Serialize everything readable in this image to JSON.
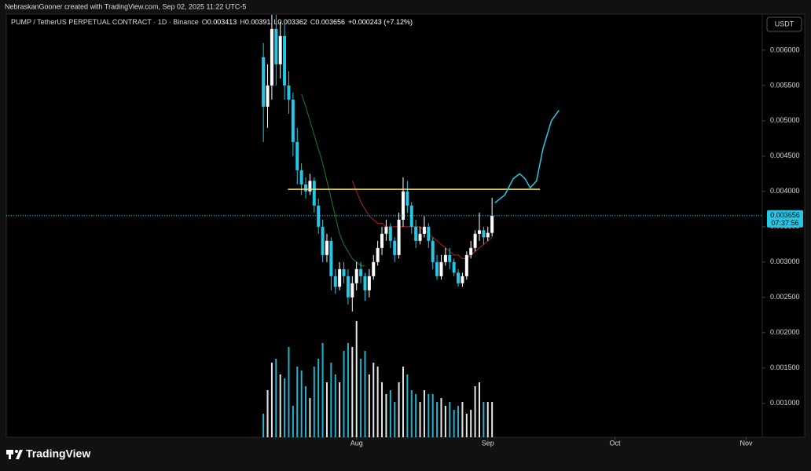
{
  "header": {
    "credit": "NebraskanGooner created with TradingView.com, Sep 02, 2025 11:22 UTC-5",
    "brand": "TradingView"
  },
  "chart_data": {
    "type": "candlestick",
    "symbol": "PUMP / TetherUS PERPETUAL CONTRACT · 1D · Binance",
    "ohlc_letters": [
      "O",
      "H",
      "L",
      "C"
    ],
    "change": "+0.000243 (+7.12%)",
    "currency": "USDT",
    "countdown": "07:37:56",
    "bull_color": "#ffffff",
    "bear_color": "#26c6e6",
    "x": [
      0,
      1,
      2,
      3,
      4,
      5,
      6,
      7,
      8,
      9,
      10,
      11,
      12,
      13,
      14,
      15,
      16,
      17,
      18,
      19,
      20,
      21,
      22,
      23,
      24,
      25,
      26,
      27,
      28,
      29,
      30,
      31,
      32,
      33,
      34,
      35,
      36,
      37,
      38,
      39,
      40,
      41,
      42,
      43,
      44,
      45,
      46,
      47,
      48,
      49,
      50,
      51,
      52,
      53,
      54
    ],
    "candles": {
      "open": [
        0.0059,
        0.0052,
        0.0055,
        0.0063,
        0.0058,
        0.0062,
        0.0055,
        0.0053,
        0.0047,
        0.0043,
        0.0041,
        0.004,
        0.00415,
        0.0038,
        0.0035,
        0.0031,
        0.0033,
        0.0028,
        0.00265,
        0.0029,
        0.0028,
        0.0025,
        0.0027,
        0.0029,
        0.0028,
        0.0026,
        0.0028,
        0.003,
        0.0032,
        0.0034,
        0.0035,
        0.0033,
        0.0031,
        0.0036,
        0.004,
        0.0038,
        0.0035,
        0.0033,
        0.0034,
        0.0035,
        0.0033,
        0.003,
        0.0028,
        0.003,
        0.0031,
        0.003,
        0.00285,
        0.0027,
        0.0028,
        0.0031,
        0.0032,
        0.0034,
        0.00345,
        0.00335,
        0.003413
      ],
      "high": [
        0.0061,
        0.0058,
        0.0065,
        0.0065,
        0.0064,
        0.0064,
        0.0057,
        0.0054,
        0.0049,
        0.0044,
        0.0042,
        0.00425,
        0.0042,
        0.0039,
        0.0036,
        0.0034,
        0.00335,
        0.0029,
        0.003,
        0.003,
        0.0029,
        0.0028,
        0.003,
        0.003,
        0.00285,
        0.0029,
        0.0031,
        0.0033,
        0.0035,
        0.0036,
        0.00355,
        0.00335,
        0.0037,
        0.0042,
        0.00415,
        0.00385,
        0.0036,
        0.0035,
        0.00365,
        0.00355,
        0.00335,
        0.0031,
        0.0031,
        0.0032,
        0.0032,
        0.00305,
        0.0029,
        0.00285,
        0.00315,
        0.0033,
        0.00345,
        0.0037,
        0.0035,
        0.0035,
        0.00391
      ],
      "low": [
        0.0047,
        0.0049,
        0.0053,
        0.0055,
        0.0056,
        0.0053,
        0.0051,
        0.0045,
        0.0041,
        0.00395,
        0.0039,
        0.00395,
        0.0037,
        0.0034,
        0.003,
        0.003,
        0.0026,
        0.00255,
        0.0026,
        0.0027,
        0.0024,
        0.0023,
        0.0026,
        0.0027,
        0.00245,
        0.0025,
        0.00275,
        0.00295,
        0.0031,
        0.0033,
        0.0032,
        0.003,
        0.00305,
        0.0035,
        0.0037,
        0.0034,
        0.0032,
        0.00325,
        0.00335,
        0.0032,
        0.0029,
        0.00275,
        0.00275,
        0.00295,
        0.0029,
        0.0028,
        0.00265,
        0.00265,
        0.00275,
        0.00305,
        0.00315,
        0.0033,
        0.00325,
        0.0033,
        0.003362
      ],
      "close": [
        0.0052,
        0.0055,
        0.0063,
        0.0058,
        0.0062,
        0.0055,
        0.0053,
        0.0047,
        0.0043,
        0.0041,
        0.004,
        0.00415,
        0.0038,
        0.0035,
        0.0031,
        0.0033,
        0.0028,
        0.00265,
        0.0029,
        0.0028,
        0.0025,
        0.0027,
        0.0029,
        0.0028,
        0.0026,
        0.0028,
        0.003,
        0.0032,
        0.0034,
        0.0035,
        0.0033,
        0.0031,
        0.0036,
        0.004,
        0.0038,
        0.0035,
        0.0033,
        0.0034,
        0.0035,
        0.0033,
        0.003,
        0.0028,
        0.003,
        0.0031,
        0.003,
        0.00285,
        0.0027,
        0.0028,
        0.0031,
        0.0032,
        0.0034,
        0.00345,
        0.00335,
        0.003413,
        0.003656
      ]
    },
    "volume": [
      30,
      60,
      95,
      100,
      80,
      75,
      115,
      40,
      90,
      85,
      65,
      50,
      90,
      100,
      120,
      70,
      95,
      80,
      70,
      110,
      120,
      115,
      148,
      100,
      110,
      80,
      95,
      90,
      70,
      55,
      60,
      45,
      70,
      90,
      80,
      60,
      55,
      45,
      60,
      55,
      55,
      45,
      50,
      40,
      45,
      35,
      40,
      45,
      30,
      35,
      65,
      70,
      45,
      45,
      45
    ],
    "volume_lim": [
      0,
      150
    ],
    "ma": [
      {
        "color": "#1f7a2e",
        "values": [
          null,
          null,
          null,
          null,
          null,
          null,
          null,
          null,
          null,
          0.00538,
          0.0052,
          0.005,
          0.0048,
          0.0046,
          0.0044,
          0.00415,
          0.0039,
          0.00365,
          0.0034,
          0.00325,
          0.00315,
          0.00305,
          0.003,
          0.00295,
          0.00295,
          null,
          null,
          null,
          null,
          null,
          null,
          null,
          null,
          null,
          null,
          null,
          null,
          null,
          null,
          null,
          null,
          null,
          null,
          null,
          null,
          null,
          null,
          null,
          null,
          null,
          null,
          null,
          null,
          null,
          null
        ]
      },
      {
        "color": "#b3261e",
        "values": [
          null,
          null,
          null,
          null,
          null,
          null,
          null,
          null,
          null,
          null,
          null,
          null,
          null,
          null,
          null,
          null,
          null,
          null,
          null,
          null,
          null,
          0.00415,
          0.004,
          0.00385,
          0.00375,
          0.00365,
          0.0036,
          0.00355,
          0.00355,
          0.0035,
          0.0035,
          0.0035,
          0.0035,
          0.0035,
          0.0035,
          0.0035,
          0.0035,
          0.0035,
          0.00345,
          0.0034,
          0.00335,
          0.0033,
          0.00325,
          0.0032,
          0.00315,
          0.0031,
          0.0031,
          0.00305,
          0.00305,
          0.0031,
          0.00315,
          0.0032,
          0.00325,
          0.0033,
          0.00335
        ]
      }
    ],
    "level": {
      "value": 0.00403,
      "x": [
        5.8,
        65.3
      ],
      "color": "#f5e050"
    },
    "projection": {
      "color": "#26c6e6",
      "x": [
        54.7,
        57,
        59,
        60.5,
        61.8,
        63,
        64.5,
        66,
        68,
        69.8
      ],
      "y": [
        0.00384,
        0.00395,
        0.00418,
        0.00425,
        0.00418,
        0.00405,
        0.00415,
        0.0046,
        0.005,
        0.00515
      ]
    },
    "xlim": [
      -60.7,
      117.8
    ],
    "xticks": [
      {
        "value": 22,
        "label": "Aug"
      },
      {
        "value": 53,
        "label": "Sep"
      },
      {
        "value": 83,
        "label": "Oct"
      },
      {
        "value": 114,
        "label": "Nov"
      }
    ],
    "ylim": [
      0.00052,
      0.00651
    ],
    "yticks": [
      {
        "value": 0.001,
        "label": "0.001000"
      },
      {
        "value": 0.0015,
        "label": "0.001500"
      },
      {
        "value": 0.002,
        "label": "0.002000"
      },
      {
        "value": 0.0025,
        "label": "0.002500"
      },
      {
        "value": 0.003,
        "label": "0.003000"
      },
      {
        "value": 0.0035,
        "label": "0.003500"
      },
      {
        "value": 0.004,
        "label": "0.004000"
      },
      {
        "value": 0.0045,
        "label": "0.004500"
      },
      {
        "value": 0.005,
        "label": "0.005000"
      },
      {
        "value": 0.0055,
        "label": "0.005500"
      },
      {
        "value": 0.006,
        "label": "0.006000"
      }
    ]
  }
}
